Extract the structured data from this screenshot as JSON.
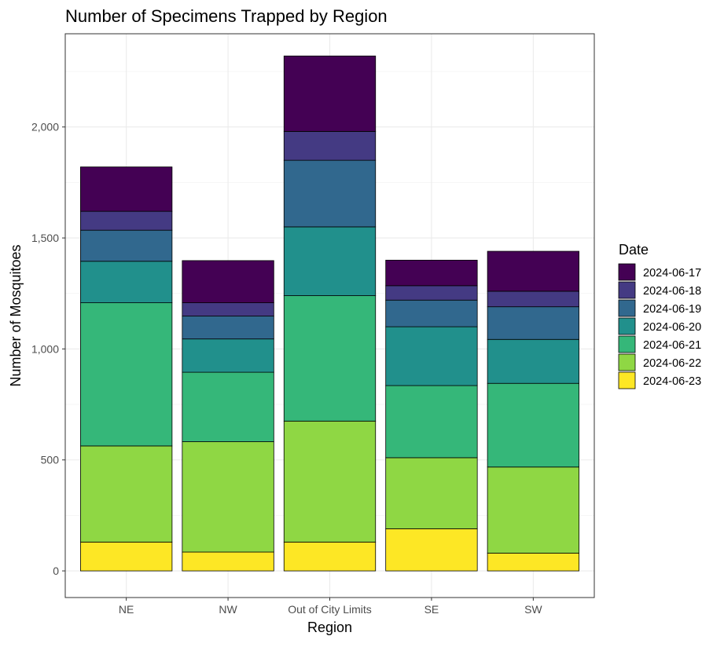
{
  "chart_data": {
    "type": "bar",
    "stacked": true,
    "title": "Number of Specimens Trapped by Region",
    "xlabel": "Region",
    "ylabel": "Number of Mosquitoes",
    "categories": [
      "NE",
      "NW",
      "Out of City Limits",
      "SE",
      "SW"
    ],
    "ylim": [
      -120,
      2420
    ],
    "yticks": [
      0,
      500,
      1000,
      1500,
      2000
    ],
    "ytick_labels": [
      "0",
      "500",
      "1,000",
      "1,500",
      "2,000"
    ],
    "grid": true,
    "legend": {
      "title": "Date",
      "position": "right"
    },
    "series": [
      {
        "name": "2024-06-23",
        "color": "#FDE725",
        "values": [
          130,
          85,
          130,
          190,
          80
        ]
      },
      {
        "name": "2024-06-22",
        "color": "#8FD744",
        "values": [
          433,
          497,
          545,
          320,
          388
        ]
      },
      {
        "name": "2024-06-21",
        "color": "#35B779",
        "values": [
          645,
          313,
          565,
          325,
          377
        ]
      },
      {
        "name": "2024-06-20",
        "color": "#21908C",
        "values": [
          187,
          150,
          310,
          265,
          198
        ]
      },
      {
        "name": "2024-06-19",
        "color": "#31688E",
        "values": [
          140,
          103,
          300,
          120,
          147
        ]
      },
      {
        "name": "2024-06-18",
        "color": "#443A83",
        "values": [
          85,
          60,
          130,
          65,
          70
        ]
      },
      {
        "name": "2024-06-17",
        "color": "#440154",
        "values": [
          200,
          190,
          340,
          115,
          180
        ]
      }
    ]
  }
}
